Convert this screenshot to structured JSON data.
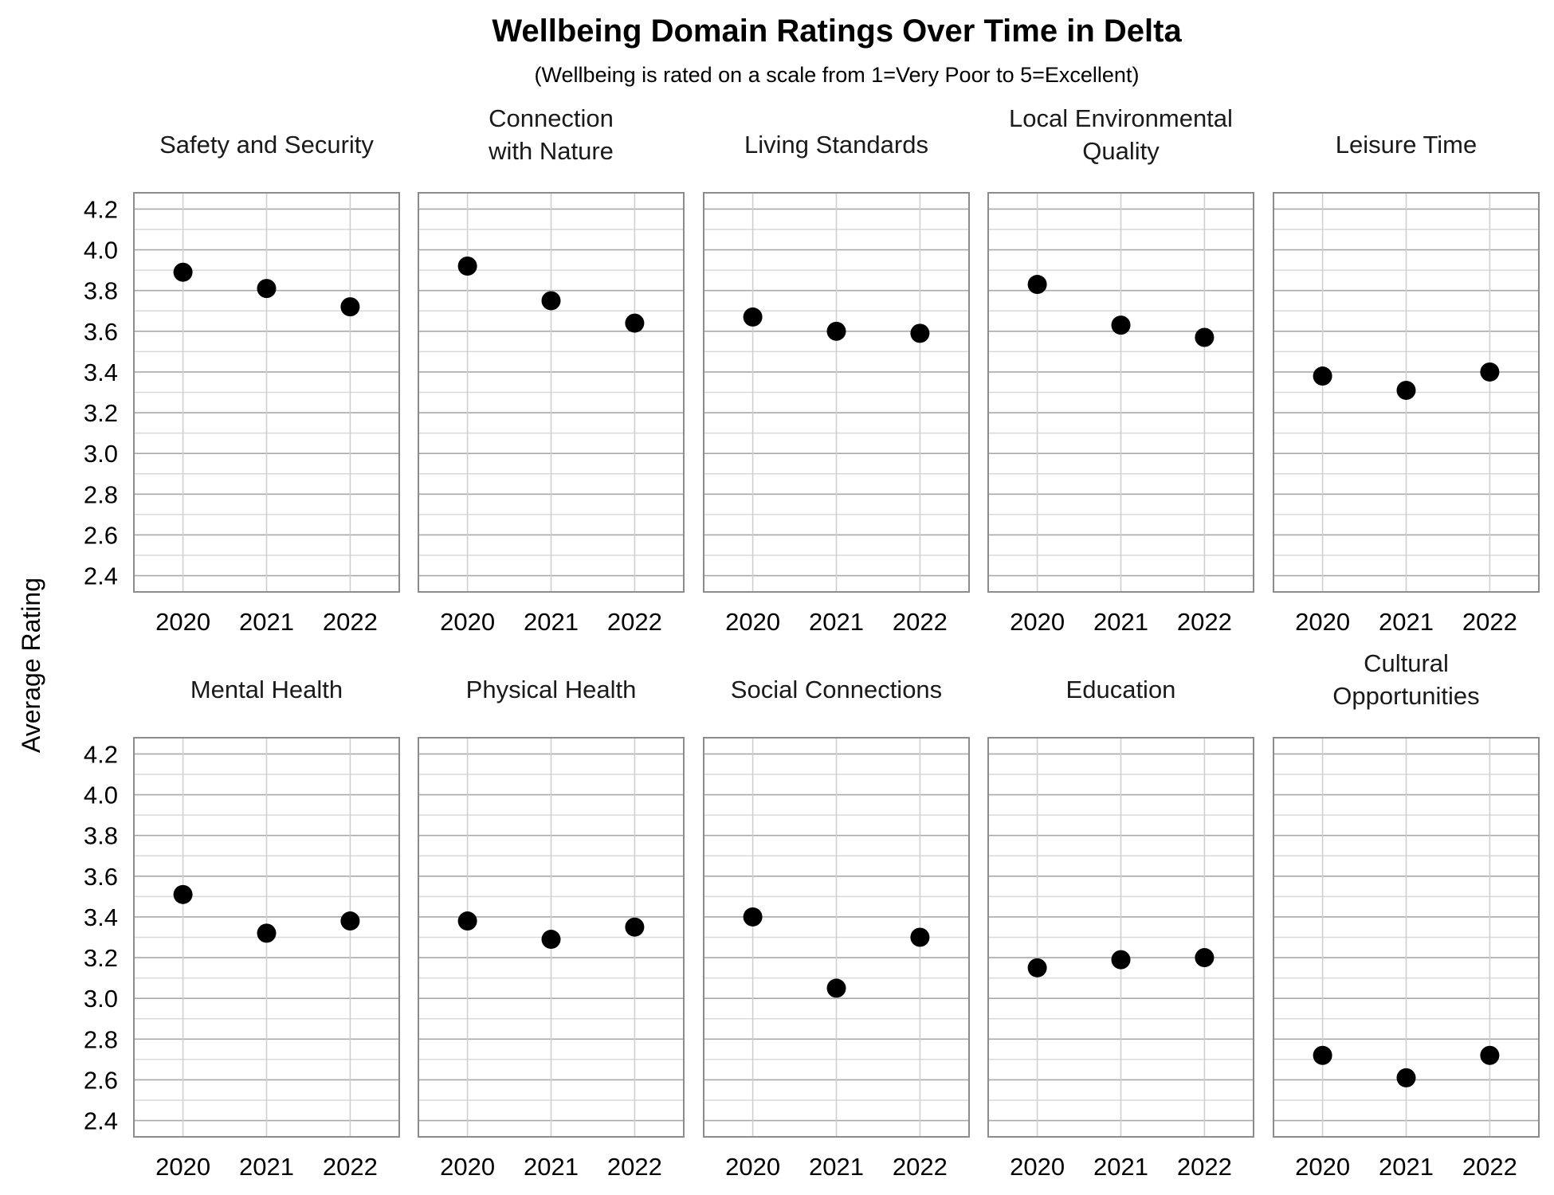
{
  "chart_data": {
    "type": "scatter",
    "title": "Wellbeing Domain Ratings Over Time in Delta",
    "subtitle": "(Wellbeing is rated on a scale from 1=Very Poor to 5=Excellent)",
    "ylabel": "Average Rating",
    "xlabel": "",
    "x": [
      "2020",
      "2021",
      "2022"
    ],
    "ylim": [
      2.32,
      4.28
    ],
    "yticks": [
      "2.4",
      "2.6",
      "2.8",
      "3.0",
      "3.2",
      "3.4",
      "3.6",
      "3.8",
      "4.0",
      "4.2"
    ],
    "grid": true,
    "point_color": "#000000",
    "facets": [
      {
        "lines": [
          "Safety and Security"
        ],
        "values": [
          3.89,
          3.81,
          3.72
        ]
      },
      {
        "lines": [
          "Connection",
          "with Nature"
        ],
        "values": [
          3.92,
          3.75,
          3.64
        ]
      },
      {
        "lines": [
          "Living Standards"
        ],
        "values": [
          3.67,
          3.6,
          3.59
        ]
      },
      {
        "lines": [
          "Local Environmental",
          "Quality"
        ],
        "values": [
          3.83,
          3.63,
          3.57
        ]
      },
      {
        "lines": [
          "Leisure Time"
        ],
        "values": [
          3.38,
          3.31,
          3.4
        ]
      },
      {
        "lines": [
          "Mental Health"
        ],
        "values": [
          3.51,
          3.32,
          3.38
        ]
      },
      {
        "lines": [
          "Physical Health"
        ],
        "values": [
          3.38,
          3.29,
          3.35
        ]
      },
      {
        "lines": [
          "Social Connections"
        ],
        "values": [
          3.4,
          3.05,
          3.3
        ]
      },
      {
        "lines": [
          "Education"
        ],
        "values": [
          3.15,
          3.19,
          3.2
        ]
      },
      {
        "lines": [
          "Cultural",
          "Opportunities"
        ],
        "values": [
          2.72,
          2.61,
          2.72
        ]
      }
    ]
  }
}
